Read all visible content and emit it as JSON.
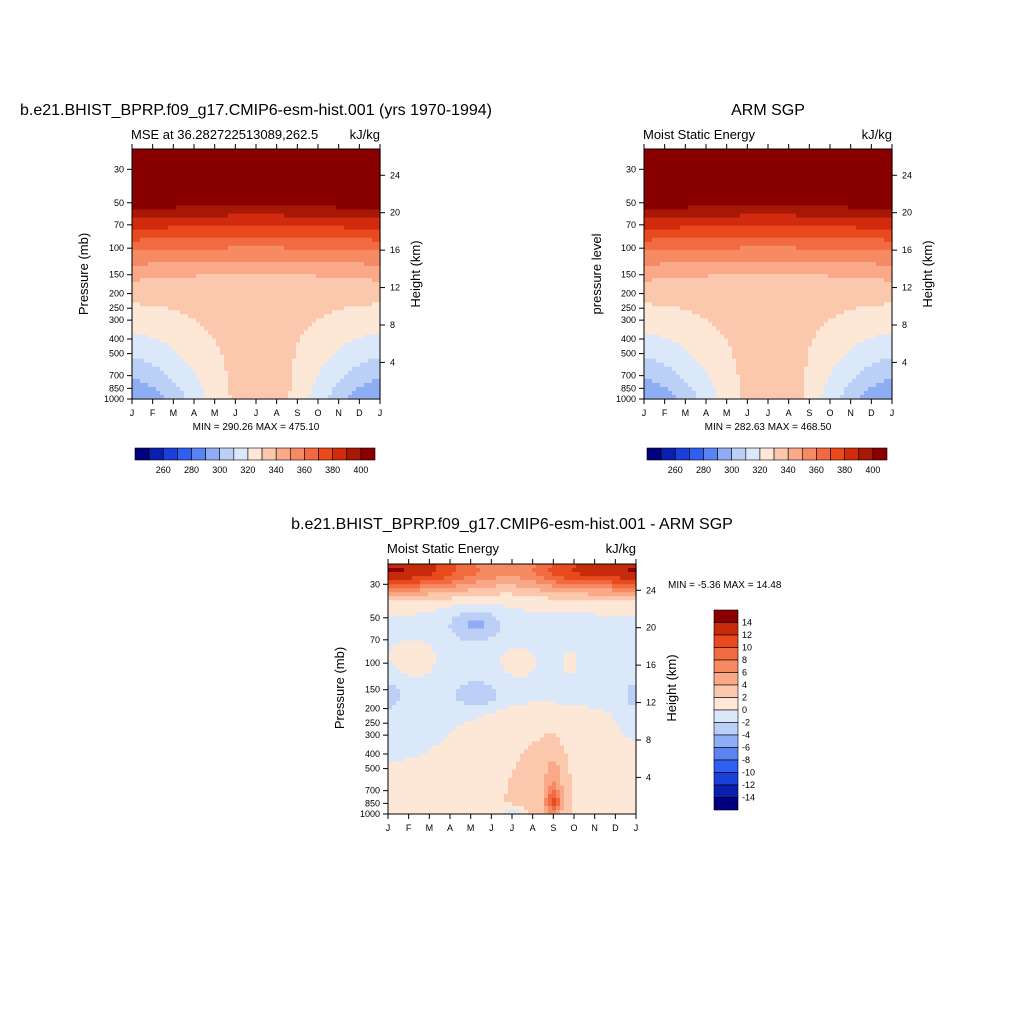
{
  "chart_data": [
    {
      "type": "contour",
      "title": "b.e21.BHIST_BPRP.f09_g17.CMIP6-esm-hist.001 (yrs 1970-1994)",
      "left_subtitle": "MSE at 36.282722513089,262.5",
      "right_subtitle": "kJ/kg",
      "ylabel": "Pressure (mb)",
      "ylabel_right": "Height (km)",
      "x_ticks": [
        "J",
        "F",
        "M",
        "A",
        "M",
        "J",
        "J",
        "A",
        "S",
        "O",
        "N",
        "D",
        "J"
      ],
      "y_ticks": [
        "30",
        "50",
        "70",
        "100",
        "150",
        "200",
        "250",
        "300",
        "400",
        "500",
        "700",
        "850",
        "1000"
      ],
      "height_ticks": [
        "24",
        "20",
        "16",
        "12",
        "8",
        "4"
      ],
      "y_scale": "log",
      "ylim": [
        1000,
        22
      ],
      "minmax": "MIN = 290.26 MAX = 475.10",
      "colorbar_labels": [
        "260",
        "280",
        "300",
        "320",
        "340",
        "360",
        "380",
        "400"
      ],
      "field_kind": "mse",
      "summer_bump": 10,
      "summer_bump_top": 0
    },
    {
      "type": "contour",
      "title": "ARM SGP",
      "left_subtitle": "Moist Static Energy",
      "right_subtitle": "kJ/kg",
      "ylabel": "pressure level",
      "ylabel_right": "Height (km)",
      "x_ticks": [
        "J",
        "F",
        "M",
        "A",
        "M",
        "J",
        "J",
        "A",
        "S",
        "O",
        "N",
        "D",
        "J"
      ],
      "y_ticks": [
        "30",
        "50",
        "70",
        "100",
        "150",
        "200",
        "250",
        "300",
        "400",
        "500",
        "700",
        "850",
        "1000"
      ],
      "height_ticks": [
        "24",
        "20",
        "16",
        "12",
        "8",
        "4"
      ],
      "y_scale": "log",
      "ylim": [
        1000,
        22
      ],
      "minmax": "MIN = 282.63 MAX = 468.50",
      "colorbar_labels": [
        "260",
        "280",
        "300",
        "320",
        "340",
        "360",
        "380",
        "400"
      ],
      "field_kind": "mse",
      "summer_bump": 14,
      "summer_bump_top": 1
    },
    {
      "type": "contour",
      "title": "b.e21.BHIST_BPRP.f09_g17.CMIP6-esm-hist.001 - ARM SGP",
      "left_subtitle": "Moist Static Energy",
      "right_subtitle": "kJ/kg",
      "ylabel": "Pressure (mb)",
      "ylabel_right": "Height (km)",
      "x_ticks": [
        "J",
        "F",
        "M",
        "A",
        "M",
        "J",
        "J",
        "A",
        "S",
        "O",
        "N",
        "D",
        "J"
      ],
      "y_ticks": [
        "30",
        "50",
        "70",
        "100",
        "150",
        "200",
        "250",
        "300",
        "400",
        "500",
        "700",
        "850",
        "1000"
      ],
      "height_ticks": [
        "24",
        "20",
        "16",
        "12",
        "8",
        "4"
      ],
      "y_scale": "log",
      "ylim": [
        1000,
        22
      ],
      "minmax": "MIN =  -5.36 MAX =  14.48",
      "colorbar_labels": [
        "14",
        "12",
        "10",
        "8",
        "6",
        "4",
        "2",
        "0",
        "-2",
        "-4",
        "-6",
        "-8",
        "-10",
        "-12",
        "-14"
      ],
      "field_kind": "diff"
    }
  ],
  "colors": {
    "mse_palette": [
      "#00007f",
      "#0a1fb0",
      "#1a3fd8",
      "#2f5ff0",
      "#5c83f2",
      "#8fadf5",
      "#bcd0f7",
      "#dbe8fa",
      "#fde8d8",
      "#fcc8ad",
      "#f9a888",
      "#f68a63",
      "#f26a40",
      "#e84a1e",
      "#d12a0c",
      "#a81806",
      "#8a0000"
    ],
    "diff_palette": [
      "#00007f",
      "#0a1fb0",
      "#1a3fd8",
      "#2f5ff0",
      "#5c83f2",
      "#8fadf5",
      "#bcd0f7",
      "#dbe8fa",
      "#fde8d8",
      "#fcc8ad",
      "#f9a888",
      "#f68a63",
      "#f26a40",
      "#e84a1e",
      "#c82a0c",
      "#8a0000"
    ]
  }
}
